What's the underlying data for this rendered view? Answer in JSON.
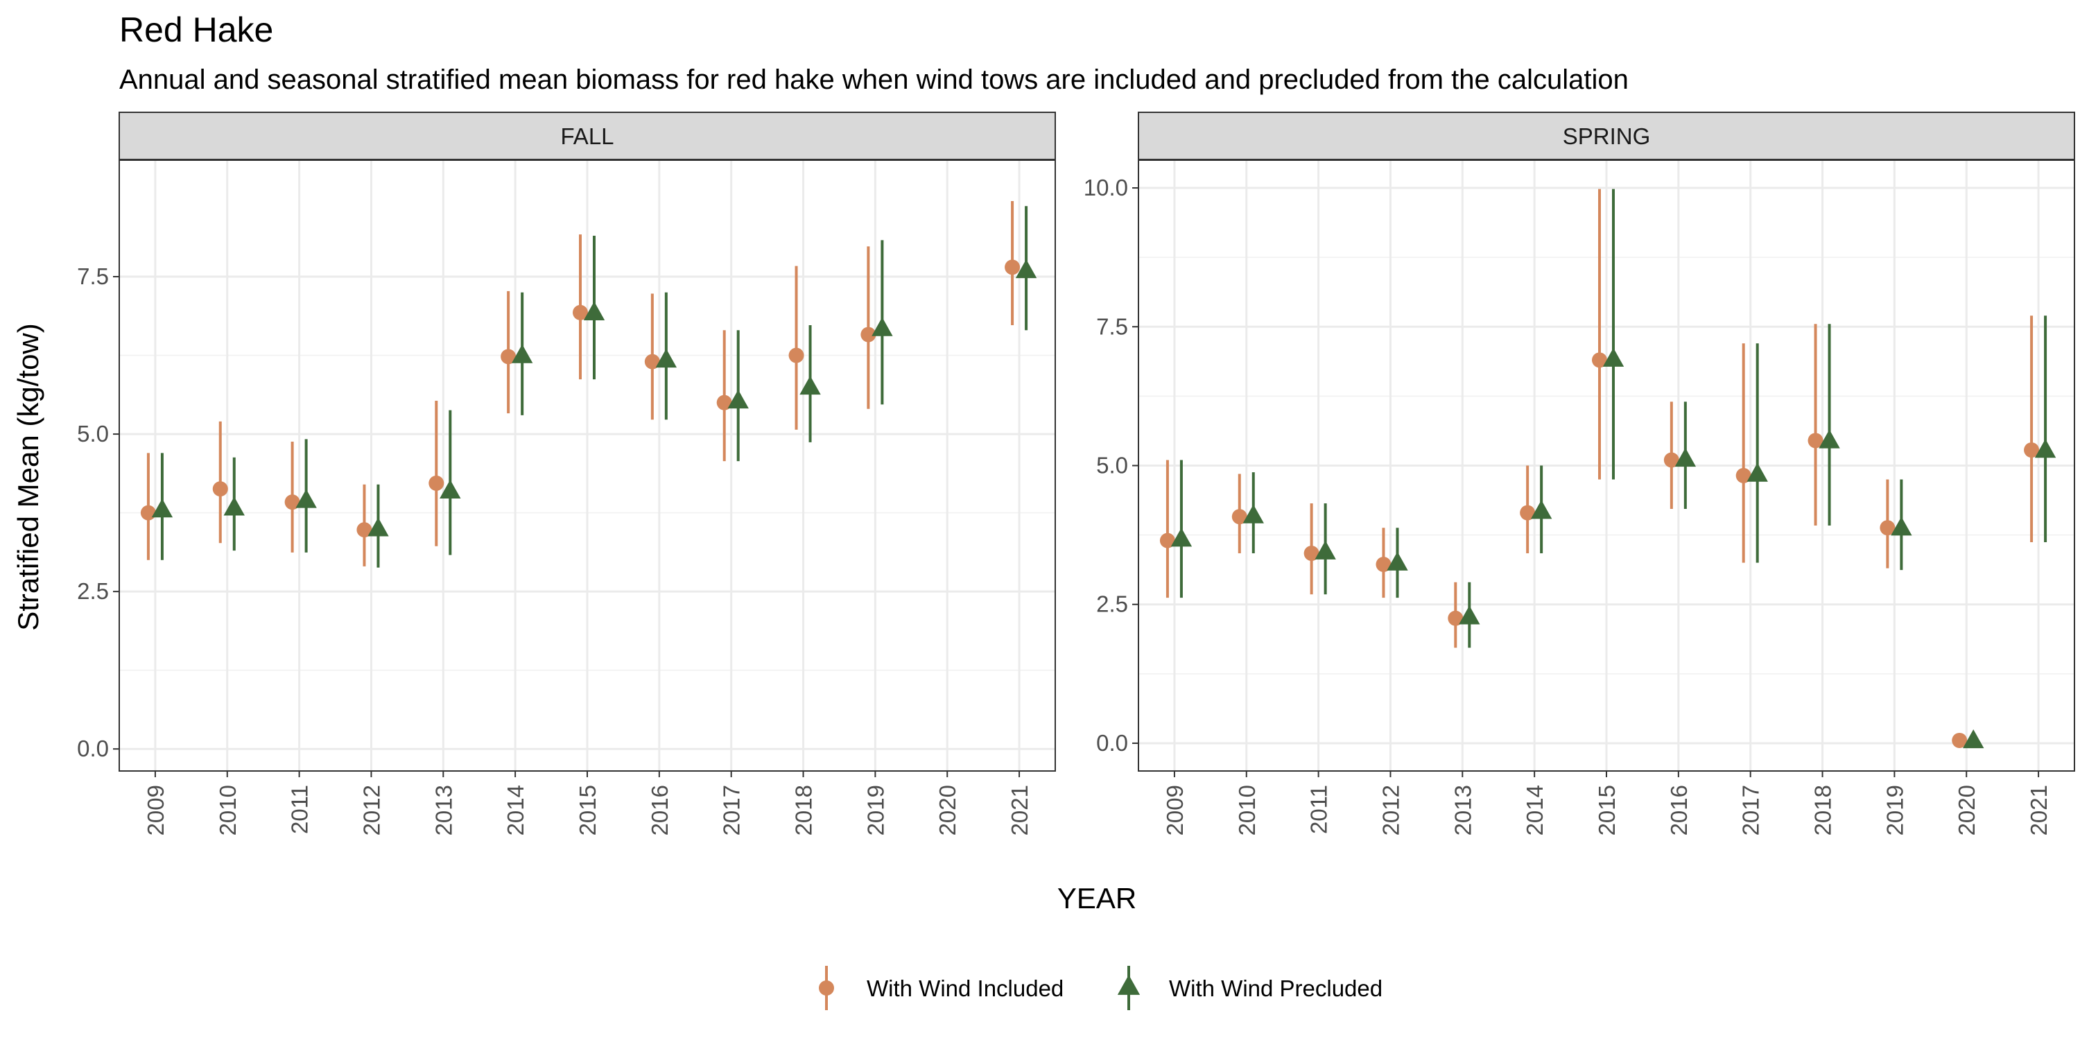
{
  "title": "Red Hake",
  "subtitle": "Annual and seasonal stratified mean biomass for red hake when wind tows are included and precluded from the calculation",
  "chart_data": {
    "type": "scatter",
    "xlabel": "YEAR",
    "ylabel": "Stratified Mean (kg/tow)",
    "legend": {
      "placement": "bottom"
    },
    "categories": [
      "2009",
      "2010",
      "2011",
      "2012",
      "2013",
      "2014",
      "2015",
      "2016",
      "2017",
      "2018",
      "2019",
      "2020",
      "2021"
    ],
    "colors": {
      "included": "#D4875B",
      "precluded": "#3E6B3A"
    },
    "series_names": [
      "With Wind Included",
      "With Wind Precluded"
    ],
    "panels": [
      {
        "name": "FALL",
        "ylim": [
          -0.35,
          9.35
        ],
        "yticks": [
          0.0,
          2.5,
          5.0,
          7.5
        ],
        "ytick_labels": [
          "0.0",
          "2.5",
          "5.0",
          "7.5"
        ],
        "series": [
          {
            "name": "With Wind Included",
            "values": [
              3.75,
              4.13,
              3.92,
              3.48,
              4.22,
              6.23,
              6.93,
              6.15,
              5.5,
              6.25,
              6.58,
              null,
              7.65
            ],
            "lower": [
              3.0,
              3.27,
              3.12,
              2.9,
              3.22,
              5.33,
              5.87,
              5.23,
              4.57,
              5.07,
              5.4,
              null,
              6.73
            ],
            "upper": [
              4.7,
              5.2,
              4.88,
              4.2,
              5.53,
              7.27,
              8.17,
              7.23,
              6.65,
              7.67,
              7.98,
              null,
              8.7
            ]
          },
          {
            "name": "With Wind Precluded",
            "values": [
              3.8,
              3.83,
              3.95,
              3.5,
              4.1,
              6.25,
              6.93,
              6.18,
              5.53,
              5.75,
              6.68,
              null,
              7.6
            ],
            "lower": [
              3.0,
              3.15,
              3.12,
              2.88,
              3.08,
              5.3,
              5.87,
              5.23,
              4.57,
              4.87,
              5.47,
              null,
              6.65
            ],
            "upper": [
              4.7,
              4.63,
              4.92,
              4.2,
              5.38,
              7.25,
              8.15,
              7.25,
              6.65,
              6.73,
              8.08,
              null,
              8.62
            ]
          }
        ]
      },
      {
        "name": "SPRING",
        "ylim": [
          -0.5,
          10.5
        ],
        "yticks": [
          0.0,
          2.5,
          5.0,
          7.5,
          10.0
        ],
        "ytick_labels": [
          "0.0",
          "2.5",
          "5.0",
          "7.5",
          "10.0"
        ],
        "series": [
          {
            "name": "With Wind Included",
            "values": [
              3.65,
              4.08,
              3.42,
              3.22,
              2.25,
              4.15,
              6.9,
              5.1,
              4.82,
              5.45,
              3.88,
              0.05,
              5.28
            ],
            "lower": [
              2.62,
              3.42,
              2.68,
              2.62,
              1.72,
              3.42,
              4.75,
              4.22,
              3.25,
              3.92,
              3.15,
              0.0,
              3.62
            ],
            "upper": [
              5.1,
              4.85,
              4.32,
              3.88,
              2.9,
              5.0,
              9.98,
              6.15,
              7.2,
              7.55,
              4.75,
              0.1,
              7.7
            ]
          },
          {
            "name": "With Wind Precluded",
            "values": [
              3.68,
              4.1,
              3.45,
              3.25,
              2.28,
              4.18,
              6.92,
              5.12,
              4.85,
              5.45,
              3.88,
              0.05,
              5.28
            ],
            "lower": [
              2.62,
              3.42,
              2.68,
              2.62,
              1.72,
              3.42,
              4.75,
              4.22,
              3.25,
              3.92,
              3.12,
              0.0,
              3.62
            ],
            "upper": [
              5.1,
              4.88,
              4.32,
              3.88,
              2.9,
              5.0,
              9.98,
              6.15,
              7.2,
              7.55,
              4.75,
              0.1,
              7.7
            ]
          }
        ]
      }
    ]
  }
}
